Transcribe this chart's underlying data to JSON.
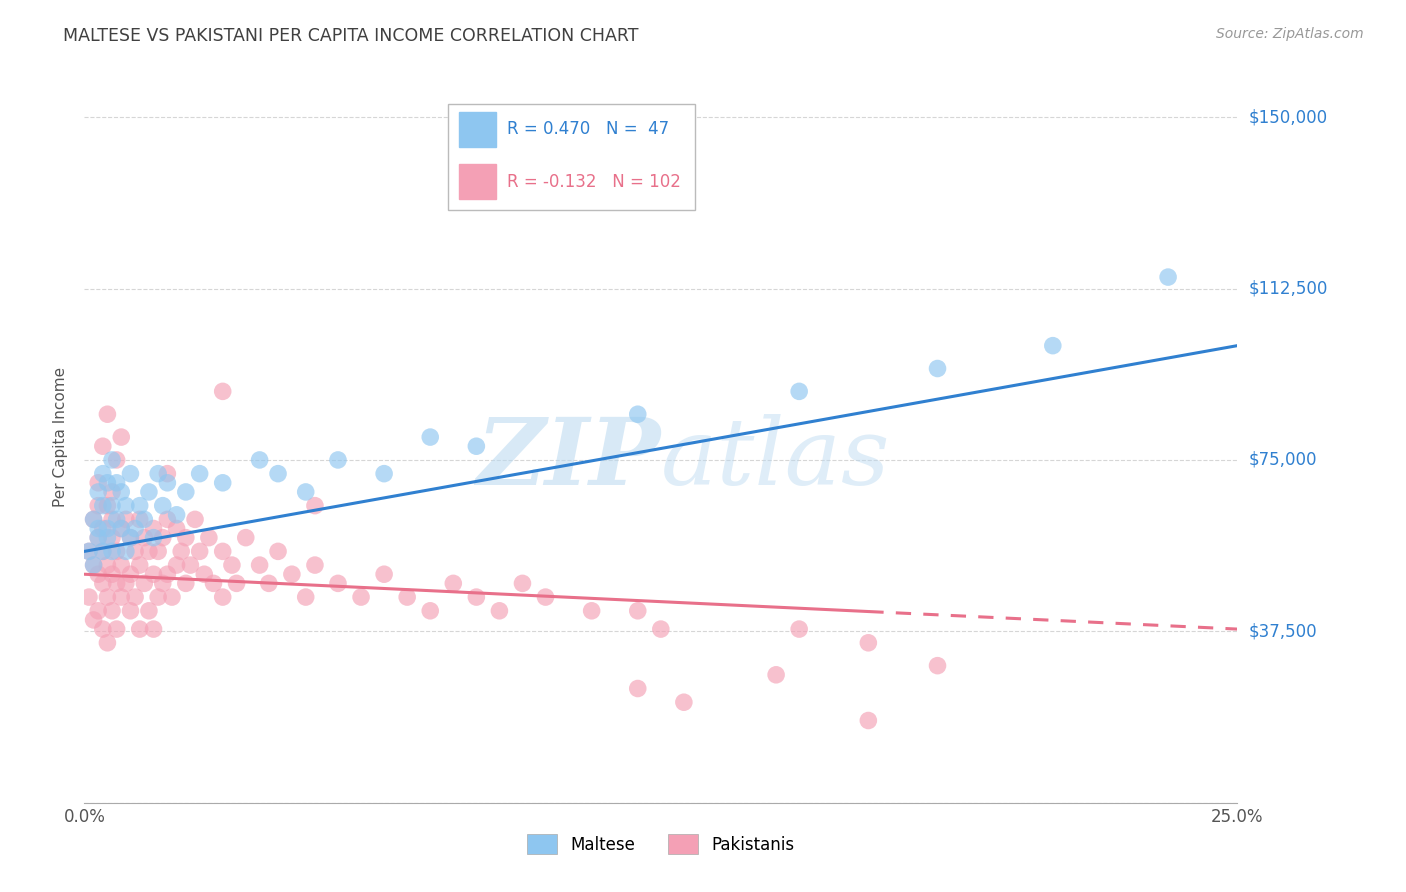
{
  "title": "MALTESE VS PAKISTANI PER CAPITA INCOME CORRELATION CHART",
  "source": "Source: ZipAtlas.com",
  "ylabel": "Per Capita Income",
  "yticks": [
    0,
    37500,
    75000,
    112500,
    150000
  ],
  "ytick_labels": [
    "",
    "$37,500",
    "$75,000",
    "$112,500",
    "$150,000"
  ],
  "xlim": [
    0.0,
    0.25
  ],
  "ylim": [
    0,
    160000
  ],
  "maltese_R": 0.47,
  "maltese_N": 47,
  "pakistani_R": -0.132,
  "pakistani_N": 102,
  "maltese_color": "#8EC6F0",
  "pakistani_color": "#F4A0B5",
  "maltese_line_color": "#3080D0",
  "pakistani_line_color": "#E8708A",
  "legend_maltese": "Maltese",
  "legend_pakistani": "Pakistanis",
  "watermark_zip": "ZIP",
  "watermark_atlas": "atlas",
  "bg_color": "#FFFFFF",
  "grid_color": "#CCCCCC",
  "title_color": "#404040",
  "source_color": "#999999",
  "yaxis_label_color": "#3080D0",
  "maltese_x": [
    0.001,
    0.002,
    0.002,
    0.003,
    0.003,
    0.003,
    0.004,
    0.004,
    0.004,
    0.005,
    0.005,
    0.005,
    0.006,
    0.006,
    0.006,
    0.007,
    0.007,
    0.008,
    0.008,
    0.009,
    0.009,
    0.01,
    0.01,
    0.011,
    0.012,
    0.013,
    0.014,
    0.015,
    0.016,
    0.017,
    0.018,
    0.02,
    0.022,
    0.025,
    0.03,
    0.038,
    0.042,
    0.048,
    0.055,
    0.065,
    0.075,
    0.085,
    0.12,
    0.155,
    0.185,
    0.21,
    0.235
  ],
  "maltese_y": [
    55000,
    62000,
    52000,
    60000,
    68000,
    58000,
    55000,
    65000,
    72000,
    60000,
    70000,
    58000,
    65000,
    75000,
    55000,
    62000,
    70000,
    60000,
    68000,
    55000,
    65000,
    58000,
    72000,
    60000,
    65000,
    62000,
    68000,
    58000,
    72000,
    65000,
    70000,
    63000,
    68000,
    72000,
    70000,
    75000,
    72000,
    68000,
    75000,
    72000,
    80000,
    78000,
    85000,
    90000,
    95000,
    100000,
    115000
  ],
  "pakistani_x": [
    0.001,
    0.001,
    0.002,
    0.002,
    0.002,
    0.003,
    0.003,
    0.003,
    0.003,
    0.004,
    0.004,
    0.004,
    0.004,
    0.005,
    0.005,
    0.005,
    0.005,
    0.006,
    0.006,
    0.006,
    0.006,
    0.007,
    0.007,
    0.007,
    0.008,
    0.008,
    0.008,
    0.009,
    0.009,
    0.01,
    0.01,
    0.01,
    0.011,
    0.011,
    0.012,
    0.012,
    0.012,
    0.013,
    0.013,
    0.014,
    0.014,
    0.015,
    0.015,
    0.015,
    0.016,
    0.016,
    0.017,
    0.017,
    0.018,
    0.018,
    0.019,
    0.02,
    0.02,
    0.021,
    0.022,
    0.022,
    0.023,
    0.024,
    0.025,
    0.026,
    0.027,
    0.028,
    0.03,
    0.03,
    0.032,
    0.033,
    0.035,
    0.038,
    0.04,
    0.042,
    0.045,
    0.048,
    0.05,
    0.055,
    0.06,
    0.065,
    0.07,
    0.075,
    0.08,
    0.085,
    0.09,
    0.095,
    0.1,
    0.11,
    0.125,
    0.03,
    0.003,
    0.004,
    0.005,
    0.006,
    0.007,
    0.008,
    0.018,
    0.05,
    0.12,
    0.155,
    0.17,
    0.185,
    0.12,
    0.13,
    0.15,
    0.17
  ],
  "pakistani_y": [
    55000,
    45000,
    62000,
    52000,
    40000,
    58000,
    50000,
    65000,
    42000,
    60000,
    48000,
    55000,
    38000,
    65000,
    52000,
    45000,
    35000,
    58000,
    50000,
    62000,
    42000,
    55000,
    48000,
    38000,
    60000,
    52000,
    45000,
    62000,
    48000,
    58000,
    50000,
    42000,
    55000,
    45000,
    62000,
    52000,
    38000,
    58000,
    48000,
    55000,
    42000,
    60000,
    50000,
    38000,
    55000,
    45000,
    58000,
    48000,
    62000,
    50000,
    45000,
    60000,
    52000,
    55000,
    58000,
    48000,
    52000,
    62000,
    55000,
    50000,
    58000,
    48000,
    55000,
    45000,
    52000,
    48000,
    58000,
    52000,
    48000,
    55000,
    50000,
    45000,
    52000,
    48000,
    45000,
    50000,
    45000,
    42000,
    48000,
    45000,
    42000,
    48000,
    45000,
    42000,
    38000,
    90000,
    70000,
    78000,
    85000,
    68000,
    75000,
    80000,
    72000,
    65000,
    42000,
    38000,
    35000,
    30000,
    25000,
    22000,
    28000,
    18000
  ]
}
